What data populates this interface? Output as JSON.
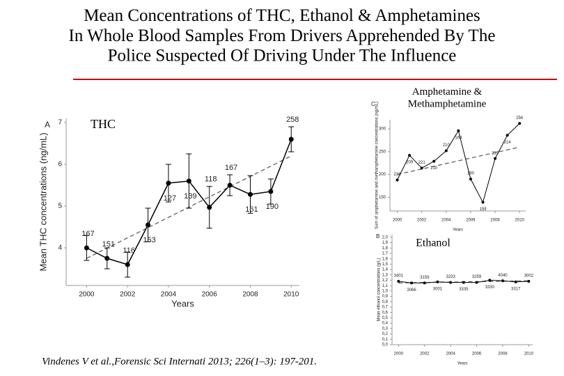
{
  "title": "Mean Concentrations of THC, Ethanol & Amphetamines\nIn Whole Blood Samples From Drivers Apprehended By The\nPolice Suspected Of Driving Under The Influence",
  "citation": "Vindenes V et al.,Forensic Sci Internati 2013;  226(1–3): 197-201.",
  "chart_data": [
    {
      "type": "line",
      "panel": "A",
      "label": "THC",
      "x_label": "Years",
      "y_label": "Mean THC concentrations (ng/mL)",
      "x": [
        2000,
        2001,
        2002,
        2003,
        2004,
        2005,
        2006,
        2007,
        2008,
        2009,
        2010
      ],
      "series": [
        {
          "name": "THC",
          "color": "#000000",
          "values": [
            4.0,
            3.75,
            3.6,
            4.55,
            5.55,
            5.6,
            4.97,
            5.5,
            5.28,
            5.35,
            6.6
          ],
          "errors": [
            0.3,
            0.25,
            0.3,
            0.4,
            0.45,
            0.65,
            0.5,
            0.25,
            0.45,
            0.3,
            0.3
          ],
          "sample_sizes": [
            "167",
            "151",
            "116",
            "153",
            "127",
            "139",
            "118",
            "167",
            "161",
            "190",
            "258"
          ]
        }
      ],
      "trend": {
        "x": [
          2000,
          2010
        ],
        "values": [
          3.75,
          6.2
        ]
      },
      "xlim": [
        1999,
        2010.4
      ],
      "ylim": [
        3.1,
        7.1
      ],
      "xticks": [
        2000,
        2002,
        2004,
        2006,
        2008,
        2010
      ],
      "yticks": [
        4,
        5,
        6,
        7
      ]
    },
    {
      "type": "line",
      "panel": "C",
      "label": "Amphetamine &\nMethamphetamine",
      "x_label": "Years",
      "y_label": "Sum of amphetamine and methamphetamine concentrations (ng/mL)",
      "x": [
        2000,
        2001,
        2002,
        2003,
        2004,
        2005,
        2006,
        2007,
        2008,
        2009,
        2010
      ],
      "series": [
        {
          "name": "Amphetamine & Methamphetamine",
          "color": "#000000",
          "values": [
            188,
            242,
            214,
            229,
            252,
            296,
            190,
            139,
            235,
            286,
            312
          ],
          "sample_sizes": [
            "231",
            "209",
            "221",
            "210",
            "210",
            "164",
            "190",
            "159",
            "219",
            "214",
            "256"
          ]
        }
      ],
      "trend": {
        "x": [
          2000,
          2010
        ],
        "values": [
          200,
          260
        ]
      },
      "xlim": [
        1999.4,
        2010.5
      ],
      "ylim": [
        120,
        320
      ],
      "xticks": [
        2000,
        2002,
        2004,
        2006,
        2008,
        2010
      ],
      "yticks": [
        150,
        200,
        250,
        300
      ]
    },
    {
      "type": "line",
      "panel": "B",
      "label": "Ethanol",
      "x_label": "Years",
      "y_label": "Mean ethanol concentrations (g/L)",
      "x": [
        2000,
        2001,
        2002,
        2003,
        2004,
        2005,
        2006,
        2007,
        2008,
        2009,
        2010
      ],
      "series": [
        {
          "name": "Ethanol",
          "color": "#000000",
          "values": [
            1.18,
            1.15,
            1.15,
            1.17,
            1.16,
            1.16,
            1.16,
            1.2,
            1.19,
            1.17,
            1.18
          ],
          "sample_sizes": [
            "3401",
            "3066",
            "3159",
            "3001",
            "3233",
            "3335",
            "3259",
            "3330",
            "4040",
            "3317",
            "3002"
          ]
        }
      ],
      "trend": {
        "x": [
          2000,
          2010
        ],
        "values": [
          1.15,
          1.19
        ]
      },
      "xlim": [
        1999.5,
        2010.3
      ],
      "ylim": [
        0,
        2.05
      ],
      "xticks": [
        2000,
        2002,
        2004,
        2006,
        2008,
        2010
      ],
      "yticks": [
        {
          "value": 0,
          "label": "0,0"
        },
        {
          "value": 0.1,
          "label": "0,1"
        },
        {
          "value": 0.2,
          "label": "0,2"
        },
        {
          "value": 0.3,
          "label": "0,3"
        },
        {
          "value": 0.4,
          "label": "0,4"
        },
        {
          "value": 0.5,
          "label": "0,5"
        },
        {
          "value": 0.6,
          "label": "0,6"
        },
        {
          "value": 0.7,
          "label": "0,7"
        },
        {
          "value": 0.8,
          "label": "0,8"
        },
        {
          "value": 0.9,
          "label": "0,9"
        },
        {
          "value": 1,
          "label": "1,0"
        },
        {
          "value": 1.1,
          "label": "1,1"
        },
        {
          "value": 1.2,
          "label": "1,2"
        },
        {
          "value": 1.3,
          "label": "1,3"
        },
        {
          "value": 1.4,
          "label": "1,4"
        },
        {
          "value": 1.5,
          "label": "1,5"
        },
        {
          "value": 1.6,
          "label": "1,6"
        },
        {
          "value": 1.7,
          "label": "1,7"
        },
        {
          "value": 1.8,
          "label": "1,8"
        },
        {
          "value": 1.9,
          "label": "1,9"
        },
        {
          "value": 2,
          "label": "2,0"
        }
      ]
    }
  ]
}
